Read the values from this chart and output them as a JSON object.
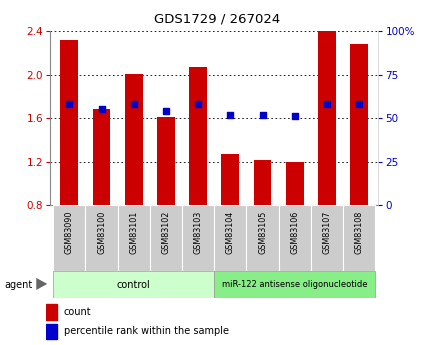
{
  "title": "GDS1729 / 267024",
  "samples": [
    "GSM83090",
    "GSM83100",
    "GSM83101",
    "GSM83102",
    "GSM83103",
    "GSM83104",
    "GSM83105",
    "GSM83106",
    "GSM83107",
    "GSM83108"
  ],
  "red_values": [
    2.32,
    1.68,
    2.01,
    1.61,
    2.07,
    1.27,
    1.22,
    1.2,
    2.4,
    2.28
  ],
  "blue_values": [
    1.73,
    1.68,
    1.73,
    1.67,
    1.73,
    1.63,
    1.63,
    1.62,
    1.73,
    1.73
  ],
  "ylim_left": [
    0.8,
    2.4
  ],
  "ylim_right": [
    0,
    100
  ],
  "yticks_left": [
    0.8,
    1.2,
    1.6,
    2.0,
    2.4
  ],
  "yticks_right": [
    0,
    25,
    50,
    75,
    100
  ],
  "ytick_labels_right": [
    "0",
    "25",
    "50",
    "75",
    "100%"
  ],
  "bar_color": "#cc0000",
  "dot_color": "#0000cc",
  "bar_bottom": 0.8,
  "control_label": "control",
  "treatment_label": "miR-122 antisense oligonucleotide",
  "agent_label": "agent",
  "legend_count": "count",
  "legend_percentile": "percentile rank within the sample",
  "control_color": "#ccffcc",
  "treatment_color": "#88ee88",
  "bg_plot": "#ffffff",
  "label_bg": "#cccccc"
}
